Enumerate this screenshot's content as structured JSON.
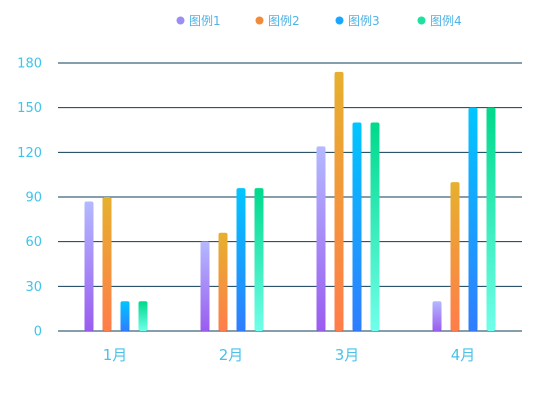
{
  "chart_data": {
    "type": "bar",
    "categories": [
      "1月",
      "2月",
      "3月",
      "4月"
    ],
    "series": [
      {
        "name": "图例1",
        "values": [
          87,
          60,
          124,
          20
        ]
      },
      {
        "name": "图例2",
        "values": [
          90,
          66,
          174,
          100
        ]
      },
      {
        "name": "图例3",
        "values": [
          20,
          96,
          140,
          150
        ]
      },
      {
        "name": "图例4",
        "values": [
          20,
          96,
          140,
          150
        ]
      }
    ],
    "y_ticks": [
      "0",
      "30",
      "60",
      "90",
      "120",
      "150",
      "180"
    ],
    "ylim": [
      0,
      180
    ],
    "grid": true,
    "legend_position": "top-center",
    "title": "",
    "xlabel": "",
    "ylabel": "",
    "colors": {
      "axis_text": "#3fc4ea",
      "gridline": "#0e3b57",
      "series": [
        {
          "top": "#b4b9ff",
          "bottom": "#9a5cf0",
          "legend": "#9b8cf6"
        },
        {
          "top": "#e6b02e",
          "bottom": "#ff7d4a",
          "legend": "#f08b3c"
        },
        {
          "top": "#00c6ff",
          "bottom": "#2f7dff",
          "legend": "#1aa6ff"
        },
        {
          "top": "#00d98b",
          "bottom": "#70ffea",
          "legend": "#20e0a0"
        }
      ]
    },
    "legend_icon": "circle-icon"
  }
}
